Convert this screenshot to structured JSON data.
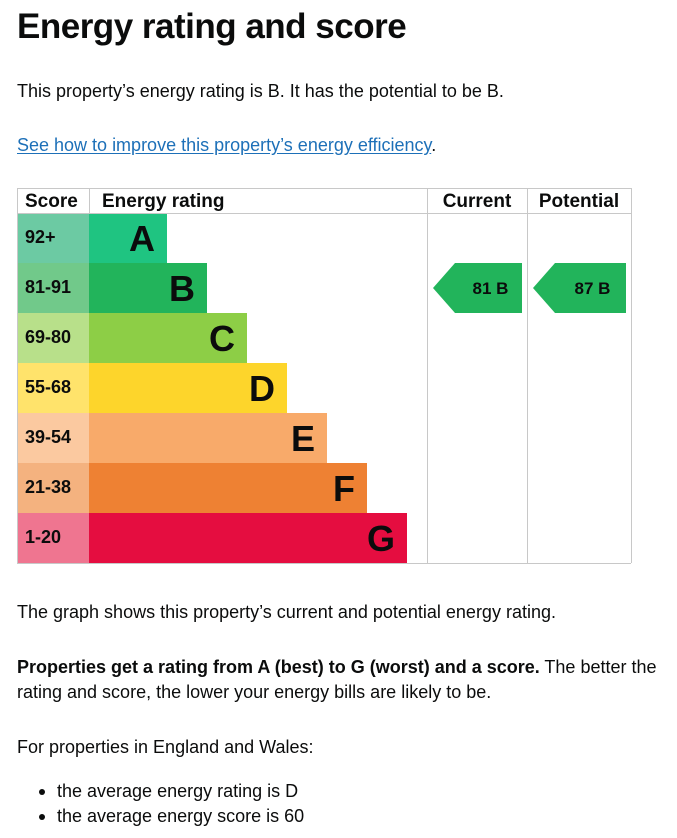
{
  "page": {
    "title": "Energy rating and score",
    "intro": "This property’s energy rating is B. It has the potential to be B.",
    "link_text": "See how to improve this property’s energy efficiency",
    "link_suffix": ".",
    "graph_note": "The graph shows this property’s current and potential energy rating.",
    "rating_bold": "Properties get a rating from A (best) to G (worst) and a score.",
    "rating_rest": " The better the rating and score, the lower your energy bills are likely to be.",
    "regional_intro": "For properties in England and Wales:",
    "bullets": [
      "the average energy rating is D",
      "the average energy score is 60"
    ]
  },
  "chart_data": {
    "type": "bar",
    "headers": {
      "score": "Score",
      "rating": "Energy rating",
      "current": "Current",
      "potential": "Potential"
    },
    "bands": [
      {
        "letter": "A",
        "range": "92+",
        "color": "#008054",
        "score_color": "#78c9a9"
      },
      {
        "letter": "B",
        "range": "81-91",
        "color": "#19b459",
        "score_color": "#7bcf93"
      },
      {
        "letter": "C",
        "range": "69-80",
        "color": "#8dce46",
        "score_color": "#bde49a"
      },
      {
        "letter": "D",
        "range": "55-68",
        "color": "#ffd500",
        "score_color": "#ffe97f"
      },
      {
        "letter": "E",
        "range": "39-54",
        "color": "#fcaa65",
        "score_color": "#fdd3af"
      },
      {
        "letter": "F",
        "range": "21-38",
        "color": "#ef8023",
        "score_color": "#f6ba8c"
      },
      {
        "letter": "G",
        "range": "1-20",
        "color": "#e9153b",
        "score_color": "#f0708a"
      }
    ],
    "band_colors": [
      "#1fc481",
      "#22b45b",
      "#8dce46",
      "#fdd52b",
      "#f8aa6a",
      "#ee8133",
      "#e50d40"
    ],
    "score_colors": [
      "#6ccaa3",
      "#71c98a",
      "#b8e08a",
      "#ffe36b",
      "#fbc9a0",
      "#f4b27f",
      "#ef7590"
    ],
    "current": {
      "score": 81,
      "band": "B",
      "label": "81 B",
      "color": "#22b45b"
    },
    "potential": {
      "score": 87,
      "band": "B",
      "label": "87 B",
      "color": "#22b45b"
    }
  }
}
